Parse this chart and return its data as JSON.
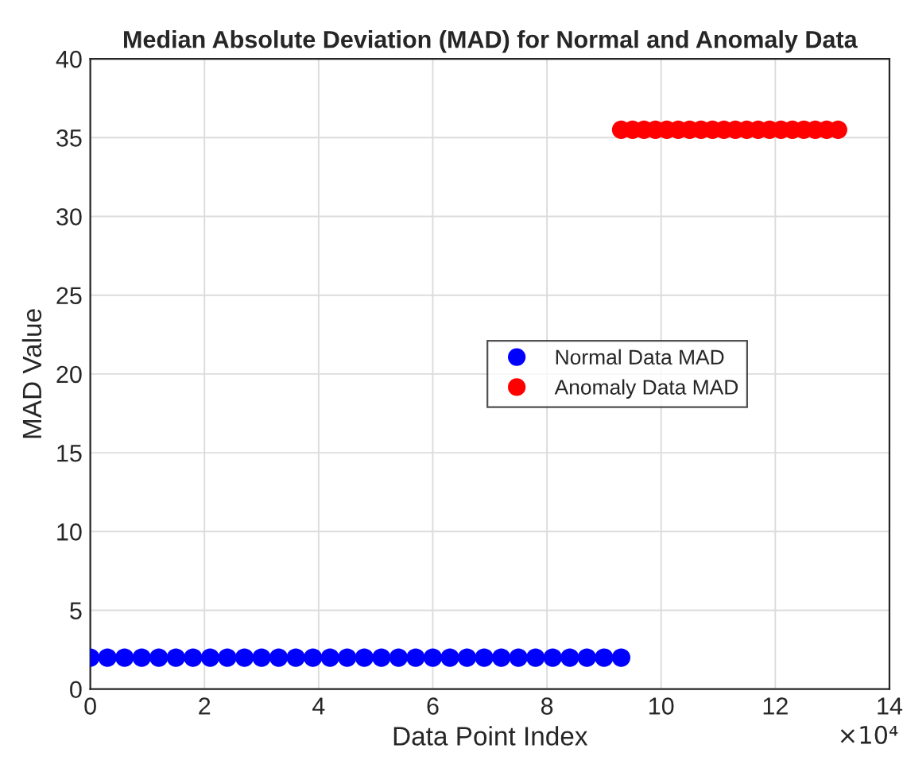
{
  "chart_data": {
    "type": "scatter",
    "title": "Median Absolute Deviation (MAD) for Normal and Anomaly Data",
    "xlabel": "Data Point Index",
    "ylabel": "MAD Value",
    "series": [
      {
        "name": "Normal Data MAD",
        "color": "#0000ff",
        "x": [
          0,
          0.3,
          0.6,
          0.9,
          1.2,
          1.5,
          1.8,
          2.1,
          2.4,
          2.7,
          3.0,
          3.3,
          3.6,
          3.9,
          4.2,
          4.5,
          4.8,
          5.1,
          5.4,
          5.7,
          6.0,
          6.3,
          6.6,
          6.9,
          7.2,
          7.5,
          7.8,
          8.1,
          8.4,
          8.7,
          9.0,
          9.3
        ],
        "values": [
          2,
          2,
          2,
          2,
          2,
          2,
          2,
          2,
          2,
          2,
          2,
          2,
          2,
          2,
          2,
          2,
          2,
          2,
          2,
          2,
          2,
          2,
          2,
          2,
          2,
          2,
          2,
          2,
          2,
          2,
          2,
          2
        ]
      },
      {
        "name": "Anomaly Data MAD",
        "color": "#ff0000",
        "x": [
          9.3,
          9.5,
          9.7,
          9.9,
          10.1,
          10.3,
          10.5,
          10.7,
          10.9,
          11.1,
          11.3,
          11.5,
          11.7,
          11.9,
          12.1,
          12.3,
          12.5,
          12.7,
          12.9,
          13.1
        ],
        "values": [
          35.5,
          35.5,
          35.5,
          35.5,
          35.5,
          35.5,
          35.5,
          35.5,
          35.5,
          35.5,
          35.5,
          35.5,
          35.5,
          35.5,
          35.5,
          35.5,
          35.5,
          35.5,
          35.5,
          35.5
        ]
      }
    ],
    "xlim": [
      0,
      14
    ],
    "xticks": [
      0,
      2,
      4,
      6,
      8,
      10,
      12,
      14
    ],
    "ylim": [
      0,
      40
    ],
    "yticks": [
      0,
      5,
      10,
      15,
      20,
      25,
      30,
      35,
      40
    ],
    "annotations": [
      "×10⁴"
    ],
    "grid": true,
    "legend": "right",
    "marker": "circle"
  }
}
